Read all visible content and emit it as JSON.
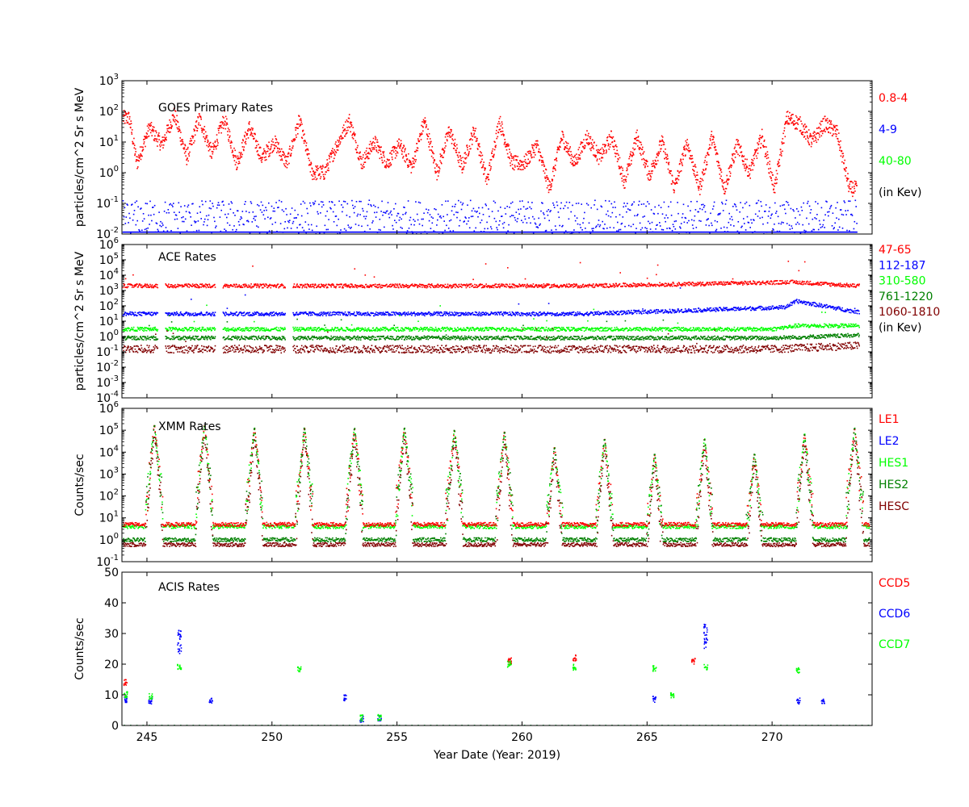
{
  "chart_data": [
    {
      "type": "scatter",
      "id": "goes",
      "title": "GOES Primary Rates",
      "ylabel": "particles/cm^2 Sr s MeV",
      "yscale": "log",
      "ylim": [
        0.01,
        1000
      ],
      "yticks": [
        {
          "value": 0.01,
          "exp": "-2"
        },
        {
          "value": 0.1,
          "exp": "-1"
        },
        {
          "value": 1,
          "exp": "0"
        },
        {
          "value": 10,
          "exp": "1"
        },
        {
          "value": 100,
          "exp": "2"
        },
        {
          "value": 1000,
          "exp": "3"
        }
      ],
      "legend": [
        {
          "label": "0.8-4",
          "color": "#ff0000"
        },
        {
          "label": "4-9",
          "color": "#0000ff"
        },
        {
          "label": "40-80",
          "color": "#00ff00"
        },
        {
          "label": "(in Kev)",
          "color": "#000000"
        }
      ],
      "series": [
        {
          "name": "0.8-4",
          "color": "#ff0000",
          "x": [
            244.3,
            244.6,
            245.1,
            245.6,
            246.1,
            246.6,
            247.1,
            247.6,
            248.1,
            248.6,
            249.1,
            249.6,
            250.1,
            250.6,
            251.1,
            251.6,
            252.1,
            252.6,
            253.1,
            253.6,
            254.1,
            254.6,
            255.1,
            255.6,
            256.1,
            256.6,
            257.1,
            257.6,
            258.1,
            258.6,
            259.1,
            259.6,
            260.1,
            260.6,
            261.1,
            261.6,
            262.1,
            262.6,
            263.1,
            263.6,
            264.1,
            264.6,
            265.1,
            265.6,
            266.1,
            266.6,
            267.1,
            267.6,
            268.1,
            268.6,
            269.1,
            269.6,
            270.1,
            270.6,
            271.1,
            271.6,
            272.1,
            272.6,
            273.1
          ],
          "values": [
            60,
            2,
            30,
            8,
            80,
            3,
            60,
            4,
            60,
            2,
            30,
            3,
            10,
            2,
            50,
            1,
            1,
            8,
            50,
            2,
            10,
            2,
            8,
            1.5,
            50,
            1,
            25,
            1.5,
            25,
            0.5,
            50,
            2,
            2,
            8,
            0.3,
            15,
            2,
            15,
            3,
            15,
            0.5,
            15,
            0.8,
            10,
            0.3,
            10,
            0.3,
            15,
            0.3,
            8,
            1,
            15,
            0.3,
            60,
            40,
            10,
            40,
            20,
            0.3
          ]
        },
        {
          "name": "4-9",
          "color": "#0000ff",
          "x": [
            244.3,
            250,
            256,
            262,
            268,
            273
          ],
          "values": [
            0.03,
            0.03,
            0.03,
            0.03,
            0.03,
            0.03
          ]
        }
      ]
    },
    {
      "type": "scatter",
      "id": "ace",
      "title": "ACE Rates",
      "ylabel": "particles/cm^2 Sr s MeV",
      "yscale": "log",
      "ylim": [
        0.0001,
        1000000
      ],
      "yticks": [
        {
          "value": 0.0001,
          "exp": "-4"
        },
        {
          "value": 0.001,
          "exp": "-3"
        },
        {
          "value": 0.01,
          "exp": "-2"
        },
        {
          "value": 0.1,
          "exp": "-1"
        },
        {
          "value": 1,
          "exp": "0"
        },
        {
          "value": 10,
          "exp": "1"
        },
        {
          "value": 100,
          "exp": "2"
        },
        {
          "value": 1000,
          "exp": "3"
        },
        {
          "value": 10000,
          "exp": "4"
        },
        {
          "value": 100000,
          "exp": "5"
        },
        {
          "value": 1000000,
          "exp": "6"
        }
      ],
      "legend": [
        {
          "label": "47-65",
          "color": "#ff0000"
        },
        {
          "label": "112-187",
          "color": "#0000ff"
        },
        {
          "label": "310-580",
          "color": "#00ff00"
        },
        {
          "label": "761-1220",
          "color": "#008000"
        },
        {
          "label": "1060-1810",
          "color": "#800000"
        },
        {
          "label": "(in Kev)",
          "color": "#000000"
        }
      ],
      "series": [
        {
          "name": "47-65",
          "color": "#ff0000",
          "x": [
            244.0,
            253.5,
            257.0,
            262.5,
            270.9,
            273.4
          ],
          "values": [
            2000,
            2000,
            2000,
            2000,
            3500,
            2000
          ]
        },
        {
          "name": "112-187",
          "color": "#0000ff",
          "x": [
            244.0,
            253.5,
            257.0,
            262.5,
            270.5,
            271.0,
            273.4
          ],
          "values": [
            30,
            30,
            30,
            30,
            80,
            200,
            40
          ]
        },
        {
          "name": "310-580",
          "color": "#00ff00",
          "x": [
            244.0,
            253.5,
            270.0,
            271.0,
            273.4
          ],
          "values": [
            3,
            3,
            3,
            5,
            5
          ]
        },
        {
          "name": "761-1220",
          "color": "#008000",
          "x": [
            244.0,
            253.5,
            270.0,
            273.4
          ],
          "values": [
            0.8,
            0.8,
            0.8,
            1.2
          ]
        },
        {
          "name": "1060-1810",
          "color": "#800000",
          "x": [
            244.0,
            253.5,
            270.0,
            273.4
          ],
          "values": [
            0.15,
            0.15,
            0.15,
            0.25
          ]
        }
      ],
      "gaps": [
        245.6,
        247.9,
        250.7
      ]
    },
    {
      "type": "scatter",
      "id": "xmm",
      "title": "XMM Rates",
      "ylabel": "Counts/sec",
      "yscale": "log",
      "ylim": [
        0.1,
        1000000
      ],
      "yticks": [
        {
          "value": 0.1,
          "exp": "-1"
        },
        {
          "value": 1,
          "exp": "0"
        },
        {
          "value": 10,
          "exp": "1"
        },
        {
          "value": 100,
          "exp": "2"
        },
        {
          "value": 1000,
          "exp": "3"
        },
        {
          "value": 10000,
          "exp": "4"
        },
        {
          "value": 100000,
          "exp": "5"
        },
        {
          "value": 1000000,
          "exp": "6"
        }
      ],
      "legend": [
        {
          "label": "LE1",
          "color": "#ff0000"
        },
        {
          "label": "LE2",
          "color": "#0000ff"
        },
        {
          "label": "HES1",
          "color": "#00ff00"
        },
        {
          "label": "HES2",
          "color": "#008000"
        },
        {
          "label": "HESC",
          "color": "#800000"
        }
      ],
      "peaks_x": [
        245.3,
        247.3,
        249.3,
        251.3,
        253.3,
        255.3,
        257.3,
        259.3,
        261.3,
        263.3,
        265.3,
        267.3,
        269.3,
        271.3,
        273.3
      ],
      "peak_values": [
        200000,
        200000,
        150000,
        150000,
        150000,
        150000,
        120000,
        100000,
        20000,
        50000,
        10000,
        50000,
        10000,
        80000,
        150000
      ],
      "baselines": [
        {
          "name": "HES1",
          "color": "#00ff00",
          "value": 4
        },
        {
          "name": "LE1",
          "color": "#ff0000",
          "value": 5
        },
        {
          "name": "HES2",
          "color": "#008000",
          "value": 1
        },
        {
          "name": "HESC",
          "color": "#800000",
          "value": 0.6
        }
      ]
    },
    {
      "type": "scatter",
      "id": "acis",
      "title": "ACIS Rates",
      "ylabel": "Counts/sec",
      "yscale": "linear",
      "ylim": [
        0,
        50
      ],
      "yticks": [
        {
          "value": 0,
          "label": "0"
        },
        {
          "value": 10,
          "label": "10"
        },
        {
          "value": 20,
          "label": "20"
        },
        {
          "value": 30,
          "label": "30"
        },
        {
          "value": 40,
          "label": "40"
        },
        {
          "value": 50,
          "label": "50"
        }
      ],
      "legend": [
        {
          "label": "CCD5",
          "color": "#ff0000"
        },
        {
          "label": "CCD6",
          "color": "#0000ff"
        },
        {
          "label": "CCD7",
          "color": "#00ff00"
        }
      ],
      "series": [
        {
          "name": "CCD5",
          "color": "#ff0000",
          "x": [
            244.15,
            259.5,
            262.1,
            266.85
          ],
          "values": [
            14,
            21,
            22,
            21
          ]
        },
        {
          "name": "CCD6",
          "color": "#0000ff",
          "x": [
            244.15,
            245.15,
            246.3,
            247.55,
            252.95,
            253.6,
            254.3,
            265.3,
            267.35,
            271.05,
            272.05
          ],
          "values": [
            8.5,
            8,
            27,
            8,
            9,
            2,
            2.3,
            8.5,
            29,
            8,
            8
          ]
        },
        {
          "name": "CCD7",
          "color": "#00ff00",
          "x": [
            244.15,
            245.15,
            246.3,
            251.1,
            253.6,
            254.3,
            259.5,
            262.1,
            265.3,
            266.0,
            267.35,
            271.05
          ],
          "values": [
            10,
            9.5,
            19,
            18.5,
            2.4,
            2.6,
            20,
            19,
            18.5,
            10,
            19,
            18
          ]
        }
      ]
    }
  ],
  "xaxis": {
    "label": "Year Date (Year: 2019)",
    "xlim": [
      244.0,
      274.0
    ],
    "ticks": [
      "245",
      "250",
      "255",
      "260",
      "265",
      "270"
    ]
  }
}
